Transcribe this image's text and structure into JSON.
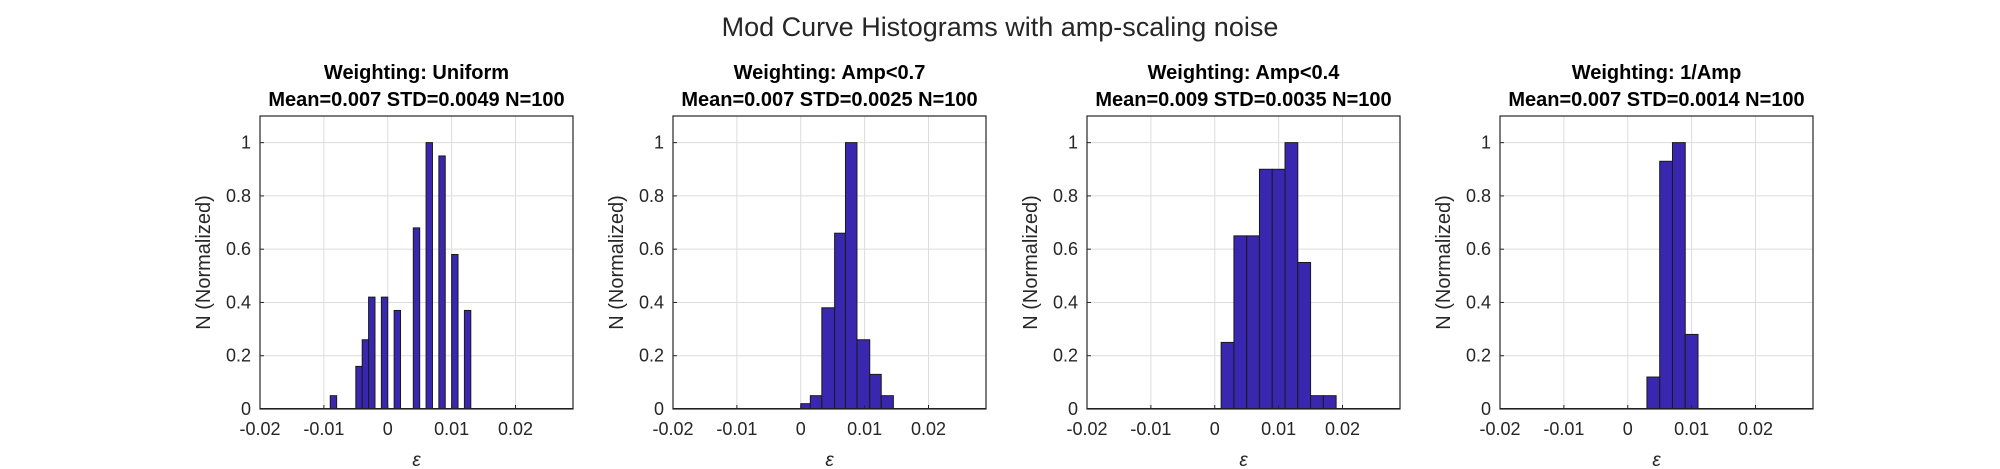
{
  "figure": {
    "title": "Mod Curve Histograms with amp-scaling noise",
    "bar_color": "#3a27b0",
    "bar_edge": "#1a1a1a"
  },
  "chart_data": [
    {
      "type": "bar",
      "title": "Weighting: Uniform",
      "subtitle": "Mean=0.007 STD=0.0049 N=100",
      "xlabel": "ε",
      "ylabel": "N (Normalized)",
      "xlim": [
        -0.02,
        0.029
      ],
      "ylim": [
        0,
        1.1
      ],
      "xticks": [
        "-0.02",
        "-0.01",
        "0",
        "0.01",
        "0.02"
      ],
      "yticks": [
        "0",
        "0.2",
        "0.4",
        "0.6",
        "0.8",
        "1"
      ],
      "grid": true,
      "bin_width": 0.001,
      "bins": [
        {
          "start": -0.009,
          "value": 0.05
        },
        {
          "start": -0.005,
          "value": 0.16
        },
        {
          "start": -0.004,
          "value": 0.26
        },
        {
          "start": -0.003,
          "value": 0.42
        },
        {
          "start": -0.001,
          "value": 0.42
        },
        {
          "start": 0.001,
          "value": 0.37
        },
        {
          "start": 0.004,
          "value": 0.68
        },
        {
          "start": 0.006,
          "value": 1.0
        },
        {
          "start": 0.008,
          "value": 0.95
        },
        {
          "start": 0.01,
          "value": 0.58
        },
        {
          "start": 0.012,
          "value": 0.37
        }
      ]
    },
    {
      "type": "bar",
      "title": "Weighting: Amp<0.7",
      "subtitle": "Mean=0.007 STD=0.0025 N=100",
      "xlabel": "ε",
      "ylabel": "N (Normalized)",
      "xlim": [
        -0.02,
        0.029
      ],
      "ylim": [
        0,
        1.1
      ],
      "xticks": [
        "-0.02",
        "-0.01",
        "0",
        "0.01",
        "0.02"
      ],
      "yticks": [
        "0",
        "0.2",
        "0.4",
        "0.6",
        "0.8",
        "1"
      ],
      "grid": true,
      "bins": [
        {
          "start": 0.0,
          "end": 0.0015,
          "value": 0.02
        },
        {
          "start": 0.0015,
          "end": 0.0033,
          "value": 0.05
        },
        {
          "start": 0.0033,
          "end": 0.0053,
          "value": 0.38
        },
        {
          "start": 0.0053,
          "end": 0.007,
          "value": 0.66
        },
        {
          "start": 0.007,
          "end": 0.0088,
          "value": 1.0
        },
        {
          "start": 0.0088,
          "end": 0.0108,
          "value": 0.26
        },
        {
          "start": 0.0108,
          "end": 0.0126,
          "value": 0.13
        },
        {
          "start": 0.0126,
          "end": 0.0145,
          "value": 0.05
        }
      ]
    },
    {
      "type": "bar",
      "title": "Weighting: Amp<0.4",
      "subtitle": "Mean=0.009 STD=0.0035 N=100",
      "xlabel": "ε",
      "ylabel": "N (Normalized)",
      "xlim": [
        -0.02,
        0.029
      ],
      "ylim": [
        0,
        1.1
      ],
      "xticks": [
        "-0.02",
        "-0.01",
        "0",
        "0.01",
        "0.02"
      ],
      "yticks": [
        "0",
        "0.2",
        "0.4",
        "0.6",
        "0.8",
        "1"
      ],
      "grid": true,
      "bins": [
        {
          "start": 0.001,
          "end": 0.003,
          "value": 0.25
        },
        {
          "start": 0.003,
          "end": 0.005,
          "value": 0.65
        },
        {
          "start": 0.005,
          "end": 0.007,
          "value": 0.65
        },
        {
          "start": 0.007,
          "end": 0.009,
          "value": 0.9
        },
        {
          "start": 0.009,
          "end": 0.011,
          "value": 0.9
        },
        {
          "start": 0.011,
          "end": 0.013,
          "value": 1.0
        },
        {
          "start": 0.013,
          "end": 0.015,
          "value": 0.55
        },
        {
          "start": 0.015,
          "end": 0.017,
          "value": 0.05
        },
        {
          "start": 0.017,
          "end": 0.019,
          "value": 0.05
        }
      ]
    },
    {
      "type": "bar",
      "title": "Weighting: 1/Amp",
      "subtitle": "Mean=0.007 STD=0.0014 N=100",
      "xlabel": "ε",
      "ylabel": "N (Normalized)",
      "xlim": [
        -0.02,
        0.029
      ],
      "ylim": [
        0,
        1.1
      ],
      "xticks": [
        "-0.02",
        "-0.01",
        "0",
        "0.01",
        "0.02"
      ],
      "yticks": [
        "0",
        "0.2",
        "0.4",
        "0.6",
        "0.8",
        "1"
      ],
      "grid": true,
      "bins": [
        {
          "start": 0.003,
          "end": 0.005,
          "value": 0.12
        },
        {
          "start": 0.005,
          "end": 0.007,
          "value": 0.93
        },
        {
          "start": 0.007,
          "end": 0.009,
          "value": 1.0
        },
        {
          "start": 0.009,
          "end": 0.011,
          "value": 0.28
        }
      ]
    }
  ]
}
